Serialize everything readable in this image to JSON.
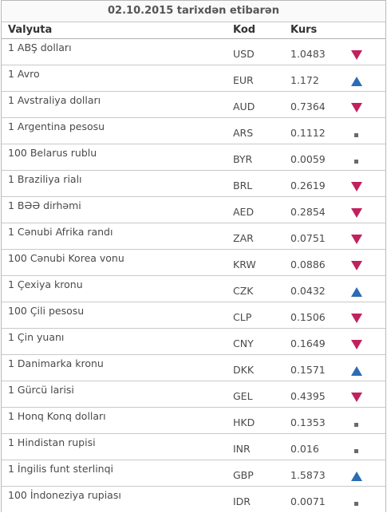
{
  "table": {
    "title": "02.10.2015 tarixdən etibarən",
    "headers": {
      "currency": "Valyuta",
      "code": "Kod",
      "rate": "Kurs"
    },
    "trend_colors": {
      "down": "#c0225e",
      "up": "#2b6cb5",
      "same": "#6a6a6a"
    },
    "rows": [
      {
        "name": "1 ABŞ dolları",
        "code": "USD",
        "rate": "1.0483",
        "trend": "down"
      },
      {
        "name": "1 Avro",
        "code": "EUR",
        "rate": "1.172",
        "trend": "up"
      },
      {
        "name": "1 Avstraliya dolları",
        "code": "AUD",
        "rate": "0.7364",
        "trend": "down"
      },
      {
        "name": "1 Argentina pesosu",
        "code": "ARS",
        "rate": "0.1112",
        "trend": "same"
      },
      {
        "name": "100 Belarus rublu",
        "code": "BYR",
        "rate": "0.0059",
        "trend": "same"
      },
      {
        "name": "1 Braziliya rialı",
        "code": "BRL",
        "rate": "0.2619",
        "trend": "down"
      },
      {
        "name": "1 BƏƏ dirhəmi",
        "code": "AED",
        "rate": "0.2854",
        "trend": "down"
      },
      {
        "name": "1 Cənubi Afrika randı",
        "code": "ZAR",
        "rate": "0.0751",
        "trend": "down"
      },
      {
        "name": "100 Cənubi Korea vonu",
        "code": "KRW",
        "rate": "0.0886",
        "trend": "down"
      },
      {
        "name": "1 Çexiya kronu",
        "code": "CZK",
        "rate": "0.0432",
        "trend": "up"
      },
      {
        "name": "100 Çili pesosu",
        "code": "CLP",
        "rate": "0.1506",
        "trend": "down"
      },
      {
        "name": "1 Çin yuanı",
        "code": "CNY",
        "rate": "0.1649",
        "trend": "down"
      },
      {
        "name": "1 Danimarka kronu",
        "code": "DKK",
        "rate": "0.1571",
        "trend": "up"
      },
      {
        "name": "1 Gürcü larisi",
        "code": "GEL",
        "rate": "0.4395",
        "trend": "down"
      },
      {
        "name": "1 Honq Konq dolları",
        "code": "HKD",
        "rate": "0.1353",
        "trend": "same"
      },
      {
        "name": "1 Hindistan rupisi",
        "code": "INR",
        "rate": "0.016",
        "trend": "same"
      },
      {
        "name": "1 İngilis funt sterlinqi",
        "code": "GBP",
        "rate": "1.5873",
        "trend": "up"
      },
      {
        "name": "100 İndoneziya rupiası",
        "code": "IDR",
        "rate": "0.0071",
        "trend": "same"
      }
    ]
  }
}
